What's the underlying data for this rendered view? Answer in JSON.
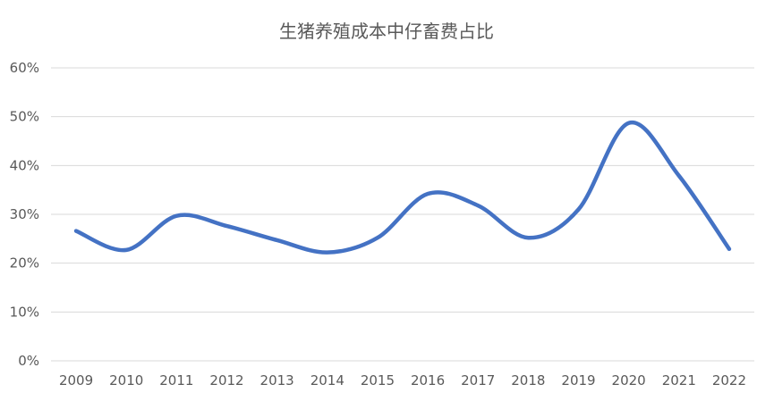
{
  "chart_data": {
    "type": "line",
    "title": "生猪养殖成本中仔畜费占比",
    "xlabel": "",
    "ylabel": "",
    "categories": [
      "2009",
      "2010",
      "2011",
      "2012",
      "2013",
      "2014",
      "2015",
      "2016",
      "2017",
      "2018",
      "2019",
      "2020",
      "2021",
      "2022"
    ],
    "y_ticks": [
      "0%",
      "10%",
      "20%",
      "30%",
      "40%",
      "50%",
      "60%"
    ],
    "ylim": [
      0,
      60
    ],
    "grid": "horizontal",
    "legend": "none",
    "smooth": true,
    "series": [
      {
        "values": [
          26.6,
          22.7,
          29.7,
          27.6,
          24.7,
          22.2,
          25.2,
          34.2,
          31.8,
          25.2,
          31.0,
          48.7,
          37.9,
          22.9
        ],
        "color": "#4472c4"
      }
    ]
  }
}
